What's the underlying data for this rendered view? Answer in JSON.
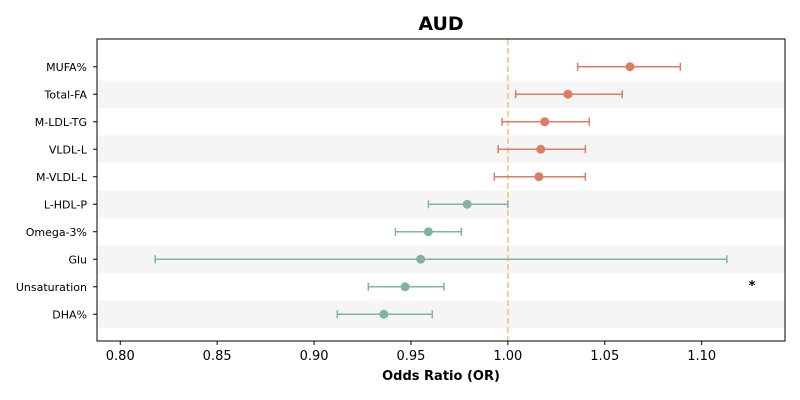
{
  "chart_data": {
    "type": "forest",
    "title": "AUD",
    "xlabel": "Odds Ratio (OR)",
    "ylabel": "",
    "xlim": [
      0.788,
      1.143
    ],
    "xticks": [
      0.8,
      0.85,
      0.9,
      0.95,
      1.0,
      1.05,
      1.1
    ],
    "xtick_labels": [
      "0.80",
      "0.85",
      "0.90",
      "0.95",
      "1.00",
      "1.05",
      "1.10"
    ],
    "reference_line": 1.0,
    "grid": false,
    "row_banding": true,
    "categories": [
      "MUFA%",
      "Total-FA",
      "M-LDL-TG",
      "VLDL-L",
      "M-VLDL-L",
      "L-HDL-P",
      "Omega-3%",
      "Glu",
      "Unsaturation",
      "DHA%"
    ],
    "points": [
      {
        "label": "MUFA%",
        "or": 1.063,
        "lower": 1.036,
        "upper": 1.089,
        "direction": "positive"
      },
      {
        "label": "Total-FA",
        "or": 1.031,
        "lower": 1.004,
        "upper": 1.059,
        "direction": "positive"
      },
      {
        "label": "M-LDL-TG",
        "or": 1.019,
        "lower": 0.997,
        "upper": 1.042,
        "direction": "positive"
      },
      {
        "label": "VLDL-L",
        "or": 1.017,
        "lower": 0.995,
        "upper": 1.04,
        "direction": "positive"
      },
      {
        "label": "M-VLDL-L",
        "or": 1.016,
        "lower": 0.993,
        "upper": 1.04,
        "direction": "positive"
      },
      {
        "label": "L-HDL-P",
        "or": 0.979,
        "lower": 0.959,
        "upper": 1.0,
        "direction": "negative"
      },
      {
        "label": "Omega-3%",
        "or": 0.959,
        "lower": 0.942,
        "upper": 0.976,
        "direction": "negative"
      },
      {
        "label": "Glu",
        "or": 0.955,
        "lower": 0.818,
        "upper": 1.113,
        "direction": "negative"
      },
      {
        "label": "Unsaturation",
        "or": 0.947,
        "lower": 0.928,
        "upper": 0.967,
        "direction": "negative"
      },
      {
        "label": "DHA%",
        "or": 0.936,
        "lower": 0.912,
        "upper": 0.961,
        "direction": "negative"
      }
    ],
    "annotations": [
      {
        "text": "*",
        "row": "Unsaturation",
        "x": 1.126
      }
    ],
    "colors": {
      "positive": "#e07b63",
      "negative": "#80b49c",
      "reference_line": "#f4c27a",
      "band": "#f5f5f5"
    }
  }
}
